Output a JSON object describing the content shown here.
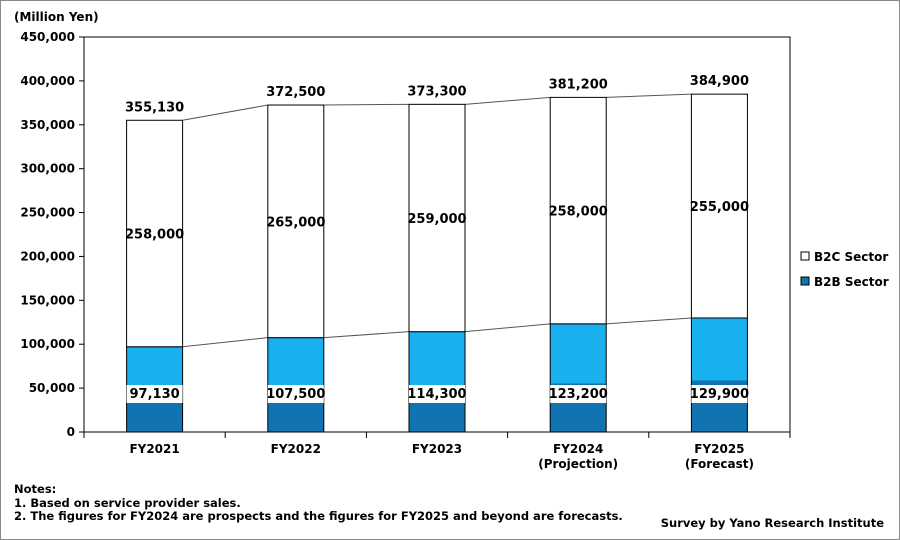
{
  "unit_label": "(Million Yen)",
  "notes": {
    "heading": "Notes:",
    "lines": [
      "1. Based on service provider sales.",
      "2. The figures for FY2024 are prospects and the figures for FY2025 and beyond are forecasts."
    ]
  },
  "source": "Survey by Yano Research Institute",
  "colors": {
    "b2c_fill": "#ffffff",
    "b2b_light": "#18b0ee",
    "b2b_dark": "#1174b0",
    "outline": "#000000",
    "connector": "#555555"
  },
  "chart_data": {
    "type": "bar",
    "stacked": true,
    "categories": [
      [
        "FY2021"
      ],
      [
        "FY2022"
      ],
      [
        "FY2023"
      ],
      [
        "FY2024",
        "(Projection)"
      ],
      [
        "FY2025",
        "(Forecast)"
      ]
    ],
    "series": [
      {
        "name": "B2B Sector",
        "values": [
          97130,
          107500,
          114300,
          123200,
          129900
        ],
        "labels": [
          "97,130",
          "107,500",
          "114,300",
          "123,200",
          "129,900"
        ]
      },
      {
        "name": "B2C Sector",
        "values": [
          258000,
          265000,
          259000,
          258000,
          255000
        ],
        "labels": [
          "258,000",
          "265,000",
          "259,000",
          "258,000",
          "255,000"
        ]
      }
    ],
    "totals": [
      355130,
      372500,
      373300,
      381200,
      384900
    ],
    "total_labels": [
      "355,130",
      "372,500",
      "373,300",
      "381,200",
      "384,900"
    ],
    "ylabel": "(Million Yen)",
    "ylim": [
      0,
      450000
    ],
    "yticks": [
      0,
      50000,
      100000,
      150000,
      200000,
      250000,
      300000,
      350000,
      400000,
      450000
    ],
    "ytick_labels": [
      "0",
      "50,000",
      "100,000",
      "150,000",
      "200,000",
      "250,000",
      "300,000",
      "350,000",
      "400,000",
      "450,000"
    ],
    "legend": [
      "B2C Sector",
      "B2B Sector"
    ],
    "legend_position": "right",
    "grid": false
  }
}
